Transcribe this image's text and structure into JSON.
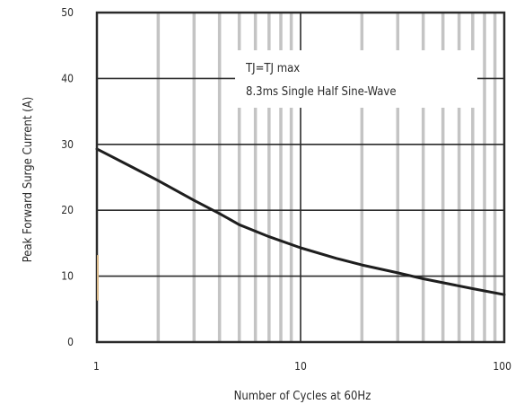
{
  "chart_data": {
    "type": "line",
    "title": "",
    "xlabel": "Number of Cycles at 60Hz",
    "ylabel": "Peak Forward Surge Current (A)",
    "x_scale": "log",
    "xlim": [
      1,
      100
    ],
    "ylim": [
      0,
      50
    ],
    "x_ticks": [
      1,
      10,
      100
    ],
    "x_tick_labels": [
      "1",
      "10",
      "100"
    ],
    "y_ticks": [
      0,
      10,
      20,
      30,
      40,
      50
    ],
    "y_tick_labels": [
      "0",
      "10",
      "20",
      "30",
      "40",
      "50"
    ],
    "grid": true,
    "annotations": [
      "TJ=TJ max",
      "8.3ms Single Half Sine-Wave"
    ],
    "series": [
      {
        "color": "#1e1e1e",
        "x": [
          1,
          1.5,
          2,
          3,
          4,
          5,
          7,
          10,
          15,
          20,
          30,
          40,
          50,
          70,
          100
        ],
        "y": [
          29.3,
          26.5,
          24.5,
          21.5,
          19.5,
          17.8,
          16.0,
          14.3,
          12.7,
          11.7,
          10.5,
          9.6,
          9.0,
          8.1,
          7.2
        ]
      }
    ]
  }
}
